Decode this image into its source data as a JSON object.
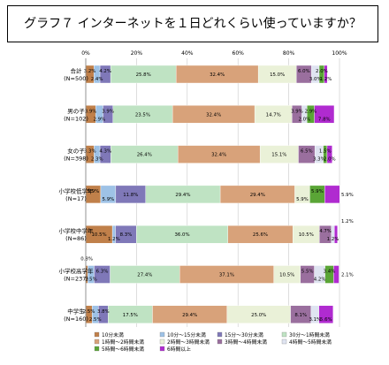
{
  "title": "グラフ７ インターネットを１日どれくらい使っていますか？",
  "chart_data": {
    "type": "bar",
    "orientation": "horizontal",
    "stacked": true,
    "xlim": [
      0,
      100
    ],
    "x_ticks": [
      "0%",
      "20%",
      "40%",
      "60%",
      "80%",
      "100%"
    ],
    "categories": [
      {
        "name": "合計",
        "n": "(N=500)"
      },
      {
        "name": "男の子",
        "n": "(N=102)"
      },
      {
        "name": "女の子",
        "n": "(N=398)"
      },
      {
        "name": "小学校低学年",
        "n": "(N=17)"
      },
      {
        "name": "小学校中学年",
        "n": "(N=86)"
      },
      {
        "name": "小学校高学年",
        "n": "(N=237)"
      },
      {
        "name": "中学生",
        "n": "(N=160)"
      }
    ],
    "series": [
      {
        "name": "10分未満",
        "color": "#c0804a",
        "values": [
          3.2,
          3.9,
          3.3,
          5.9,
          10.5,
          0.8,
          2.5
        ]
      },
      {
        "name": "10分～15分未満",
        "color": "#9ec2e6",
        "values": [
          2.4,
          2.9,
          2.3,
          5.9,
          1.2,
          2.5,
          2.5
        ]
      },
      {
        "name": "15分～30分未満",
        "color": "#7f78b8",
        "values": [
          4.2,
          3.9,
          4.3,
          11.8,
          8.3,
          6.3,
          3.8
        ]
      },
      {
        "name": "30分～1時間未満",
        "color": "#bfe3c3",
        "values": [
          25.8,
          23.5,
          26.4,
          29.4,
          36.0,
          27.4,
          17.5
        ]
      },
      {
        "name": "1時間～2時間未満",
        "color": "#d8a27a",
        "values": [
          32.4,
          32.4,
          32.4,
          29.4,
          25.6,
          37.1,
          29.4
        ]
      },
      {
        "name": "2時間～3時間未満",
        "color": "#eaf1d8",
        "values": [
          15.0,
          14.7,
          15.1,
          5.9,
          10.5,
          10.5,
          25.0
        ]
      },
      {
        "name": "3時間～4時間未満",
        "color": "#9a6f9e",
        "values": [
          6.0,
          3.9,
          6.5,
          0,
          4.7,
          5.5,
          8.1
        ]
      },
      {
        "name": "4時間～5時間未満",
        "color": "#dfe4f1",
        "values": [
          3.0,
          2.0,
          3.3,
          0,
          1.2,
          4.2,
          3.1
        ]
      },
      {
        "name": "5時間～6時間未満",
        "color": "#5aa536",
        "values": [
          2.0,
          2.9,
          1.5,
          5.9,
          0,
          3.4,
          0
        ]
      },
      {
        "name": "6時間以上",
        "color": "#b02bd0",
        "values": [
          1.2,
          7.8,
          2.0,
          5.9,
          1.2,
          2.1,
          5.6
        ]
      }
    ],
    "labels": [
      [
        "3.2%",
        "2.4%",
        "4.2%",
        "25.8%",
        "32.4%",
        "15.0%",
        "6.0%",
        "3.0%",
        "2.0%",
        "1.2%"
      ],
      [
        "3.9%",
        "2.9%",
        "3.9%",
        "23.5%",
        "32.4%",
        "14.7%",
        "3.9%",
        "2.0%",
        "2.9%",
        "7.8%"
      ],
      [
        "3.3%",
        "2.3%",
        "4.3%",
        "26.4%",
        "32.4%",
        "15.1%",
        "6.5%",
        "3.3%",
        "1.5%",
        "2.0%"
      ],
      [
        "5.9%",
        "5.9%",
        "11.8%",
        "29.4%",
        "29.4%",
        "5.9%",
        "",
        "",
        "5.9%",
        "5.9%"
      ],
      [
        "10.5%",
        "1.2%",
        "8.3%",
        "36.0%",
        "25.6%",
        "10.5%",
        "4.7%",
        "1.2%",
        "",
        "1.2%"
      ],
      [
        "0.8%",
        "2.5%",
        "6.3%",
        "27.4%",
        "37.1%",
        "10.5%",
        "5.5%",
        "4.2%",
        "3.4%",
        "2.1%"
      ],
      [
        "2.5%",
        "2.5%",
        "3.8%",
        "17.5%",
        "29.4%",
        "25.0%",
        "8.1%",
        "3.1%",
        "",
        "5.6%"
      ]
    ]
  }
}
